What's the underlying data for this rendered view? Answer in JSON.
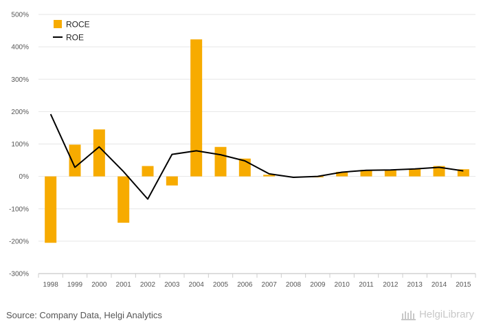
{
  "chart_data": {
    "type": "bar",
    "categories": [
      "1998",
      "1999",
      "2000",
      "2001",
      "2002",
      "2003",
      "2004",
      "2005",
      "2006",
      "2007",
      "2008",
      "2009",
      "2010",
      "2011",
      "2012",
      "2013",
      "2014",
      "2015"
    ],
    "series": [
      {
        "name": "ROCE",
        "kind": "bar",
        "color": "#f7ab00",
        "values": [
          -205,
          98,
          145,
          -143,
          32,
          -28,
          423,
          91,
          55,
          5,
          0,
          -3,
          14,
          20,
          21,
          23,
          32,
          22
        ]
      },
      {
        "name": "ROE",
        "kind": "line",
        "color": "#000000",
        "values": [
          192,
          28,
          91,
          15,
          -70,
          68,
          79,
          67,
          48,
          8,
          -3,
          0,
          13,
          19,
          20,
          23,
          28,
          17
        ]
      }
    ],
    "ylim": [
      -300,
      500
    ],
    "yticks": [
      500,
      400,
      300,
      200,
      100,
      0,
      -100,
      -200,
      -300
    ],
    "ytick_labels": [
      "500%",
      "400%",
      "300%",
      "200%",
      "100%",
      "0%",
      "-100%",
      "-200%",
      "-300%"
    ],
    "legend_position": "top-left",
    "grid": true
  },
  "footer": {
    "source": "Source: Company Data, Helgi Analytics",
    "brand": "HelgiLibrary"
  }
}
